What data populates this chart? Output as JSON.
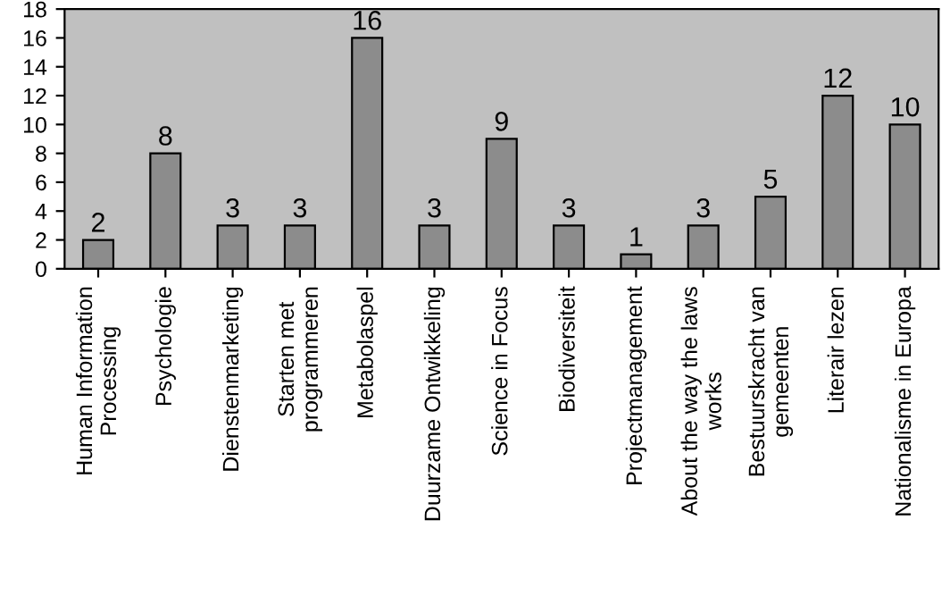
{
  "chart_data": {
    "type": "bar",
    "categories": [
      "Human Information\nProcessing",
      "Psychologie",
      "Dienstenmarketing",
      "Starten met\nprogrammeren",
      "Metabolaspel",
      "Duurzame Ontwikkeling",
      "Science in Focus",
      "Biodiversiteit",
      "Projectmanagement",
      "About the way the laws\nworks",
      "Bestuurskracht van\ngemeenten",
      "Literair lezen",
      "Nationalisme in Europa"
    ],
    "values": [
      2,
      8,
      3,
      3,
      16,
      3,
      9,
      3,
      1,
      3,
      5,
      12,
      10
    ],
    "color": "#8c8c8c",
    "ylim": [
      0,
      18
    ],
    "yticks": [
      0,
      2,
      4,
      6,
      8,
      10,
      12,
      14,
      16,
      18
    ],
    "data_labels": true,
    "grid": false,
    "legend": false
  }
}
